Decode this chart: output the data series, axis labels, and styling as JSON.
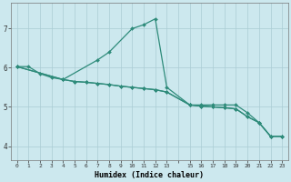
{
  "xlabel": "Humidex (Indice chaleur)",
  "background_color": "#cce8ee",
  "grid_color": "#aaccd4",
  "line_color": "#2e8b7a",
  "xlim": [
    -0.5,
    23.5
  ],
  "ylim": [
    3.65,
    7.65
  ],
  "xtick_labels": [
    "0",
    "1",
    "2",
    "3",
    "4",
    "5",
    "6",
    "7",
    "8",
    "9",
    "10",
    "11",
    "12",
    "13",
    "",
    "15",
    "16",
    "17",
    "18",
    "19",
    "20",
    "21",
    "22",
    "23"
  ],
  "xtick_positions": [
    0,
    1,
    2,
    3,
    4,
    5,
    6,
    7,
    8,
    9,
    10,
    11,
    12,
    13,
    14,
    15,
    16,
    17,
    18,
    19,
    20,
    21,
    22,
    23
  ],
  "yticks": [
    4,
    5,
    6,
    7
  ],
  "series1": [
    [
      0,
      6.03
    ],
    [
      1,
      6.03
    ],
    [
      2,
      5.85
    ],
    [
      3,
      5.75
    ],
    [
      4,
      5.7
    ],
    [
      7,
      6.2
    ],
    [
      8,
      6.4
    ],
    [
      10,
      7.0
    ],
    [
      11,
      7.1
    ],
    [
      12,
      7.25
    ],
    [
      13,
      5.5
    ],
    [
      15,
      5.05
    ],
    [
      16,
      5.05
    ],
    [
      17,
      5.05
    ],
    [
      18,
      5.05
    ],
    [
      19,
      5.05
    ],
    [
      20,
      4.85
    ],
    [
      21,
      4.6
    ],
    [
      22,
      4.25
    ],
    [
      23,
      4.25
    ]
  ],
  "series2": [
    [
      0,
      6.03
    ],
    [
      4,
      5.7
    ],
    [
      5,
      5.65
    ],
    [
      6,
      5.63
    ],
    [
      7,
      5.6
    ],
    [
      8,
      5.57
    ],
    [
      9,
      5.53
    ],
    [
      10,
      5.5
    ],
    [
      11,
      5.47
    ],
    [
      12,
      5.44
    ],
    [
      13,
      5.38
    ],
    [
      15,
      5.05
    ],
    [
      16,
      5.02
    ],
    [
      17,
      5.0
    ],
    [
      18,
      4.98
    ],
    [
      19,
      4.95
    ],
    [
      20,
      4.75
    ],
    [
      21,
      4.6
    ],
    [
      22,
      4.25
    ],
    [
      23,
      4.25
    ]
  ],
  "series3": [
    [
      0,
      6.03
    ],
    [
      4,
      5.7
    ],
    [
      5,
      5.65
    ],
    [
      6,
      5.63
    ],
    [
      7,
      5.6
    ],
    [
      8,
      5.57
    ],
    [
      9,
      5.53
    ],
    [
      10,
      5.5
    ],
    [
      11,
      5.47
    ],
    [
      12,
      5.44
    ],
    [
      13,
      5.38
    ],
    [
      15,
      5.05
    ],
    [
      16,
      5.02
    ],
    [
      17,
      5.0
    ],
    [
      18,
      4.98
    ],
    [
      19,
      4.95
    ],
    [
      20,
      4.75
    ],
    [
      21,
      4.6
    ],
    [
      22,
      4.25
    ],
    [
      23,
      4.25
    ]
  ]
}
